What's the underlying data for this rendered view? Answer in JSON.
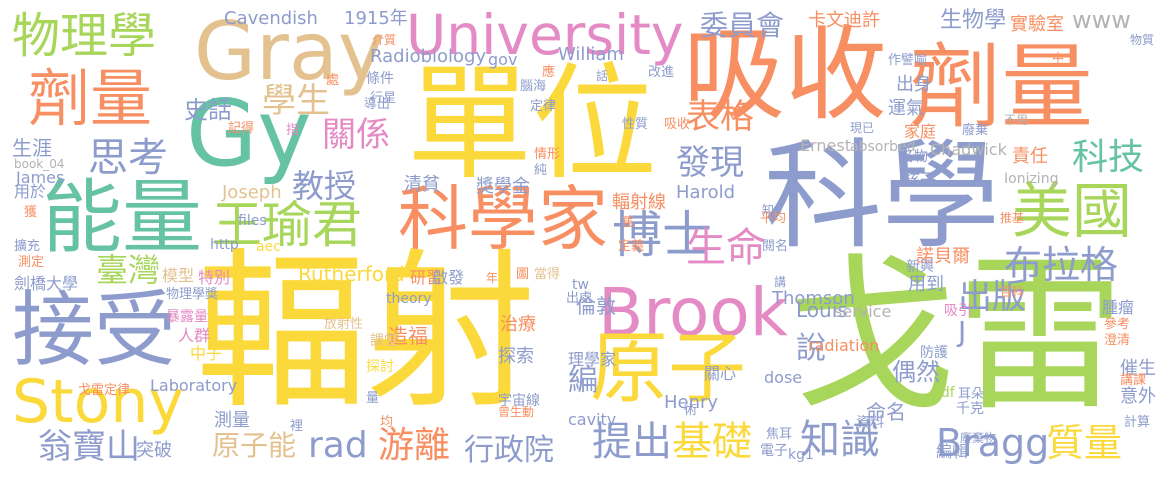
{
  "palette": {
    "yellow": "#fbd93b",
    "green": "#a7d65a",
    "orange": "#f88f63",
    "blue": "#8d9ccc",
    "tan": "#e3c28f",
    "pink": "#e48ac4",
    "teal": "#66c2a5",
    "grey": "#b3b3b3"
  },
  "words": [
    {
      "text": "輻射",
      "color": "yellow"
    },
    {
      "text": "戈雷",
      "color": "green"
    },
    {
      "text": "單位",
      "color": "yellow"
    },
    {
      "text": "吸收",
      "color": "orange"
    },
    {
      "text": "科學",
      "color": "blue"
    },
    {
      "text": "劑量",
      "color": "orange"
    },
    {
      "text": "Gray",
      "color": "tan"
    },
    {
      "text": "University",
      "color": "pink"
    },
    {
      "text": "物理學",
      "color": "green"
    },
    {
      "text": "劑量",
      "color": "orange"
    },
    {
      "text": "Gy",
      "color": "teal"
    },
    {
      "text": "能量",
      "color": "teal"
    },
    {
      "text": "接受",
      "color": "blue"
    },
    {
      "text": "Stony",
      "color": "yellow"
    },
    {
      "text": "科學家",
      "color": "orange"
    },
    {
      "text": "王瑜君",
      "color": "green"
    },
    {
      "text": "Brook",
      "color": "pink"
    },
    {
      "text": "原子",
      "color": "yellow"
    },
    {
      "text": "美國",
      "color": "green"
    },
    {
      "text": "博士",
      "color": "blue"
    },
    {
      "text": "思考",
      "color": "blue"
    },
    {
      "text": "學生",
      "color": "tan"
    },
    {
      "text": "關係",
      "color": "pink"
    },
    {
      "text": "教授",
      "color": "blue"
    },
    {
      "text": "生命",
      "color": "pink"
    },
    {
      "text": "基礎",
      "color": "yellow"
    },
    {
      "text": "知識",
      "color": "blue"
    },
    {
      "text": "提出",
      "color": "blue"
    },
    {
      "text": "游離",
      "color": "orange"
    },
    {
      "text": "rad",
      "color": "blue"
    },
    {
      "text": "翁寶山",
      "color": "blue"
    },
    {
      "text": "Bragg",
      "color": "blue"
    },
    {
      "text": "質量",
      "color": "yellow"
    },
    {
      "text": "布拉格",
      "color": "blue"
    },
    {
      "text": "科技",
      "color": "teal"
    },
    {
      "text": "發現",
      "color": "blue"
    },
    {
      "text": "表格",
      "color": "orange"
    },
    {
      "text": "出版",
      "color": "blue"
    },
    {
      "text": "行政院",
      "color": "blue"
    },
    {
      "text": "原子能",
      "color": "tan"
    },
    {
      "text": "臺灣",
      "color": "green"
    },
    {
      "text": "史話",
      "color": "blue"
    },
    {
      "text": "委員會",
      "color": "blue"
    },
    {
      "text": "說",
      "color": "blue"
    },
    {
      "text": "編",
      "color": "blue"
    },
    {
      "text": "Cavendish",
      "color": "blue"
    },
    {
      "text": "1915年",
      "color": "blue"
    },
    {
      "text": "卡文迪許",
      "color": "orange"
    },
    {
      "text": "生物學",
      "color": "blue"
    },
    {
      "text": "實驗室",
      "color": "orange"
    },
    {
      "text": "www",
      "color": "grey"
    },
    {
      "text": "Radiobiology",
      "color": "blue"
    },
    {
      "text": "William",
      "color": "blue"
    },
    {
      "text": "gov",
      "color": "blue"
    },
    {
      "text": "Louis",
      "color": "blue"
    },
    {
      "text": "Thomson",
      "color": "blue"
    },
    {
      "text": "Rutherford",
      "color": "yellow"
    },
    {
      "text": "Harold",
      "color": "blue"
    },
    {
      "text": "Henry",
      "color": "blue"
    },
    {
      "text": "Laboratory",
      "color": "blue"
    },
    {
      "text": "Joseph",
      "color": "tan"
    },
    {
      "text": "Ernest",
      "color": "grey"
    },
    {
      "text": "absorbed",
      "color": "grey"
    },
    {
      "text": "Chadwick",
      "color": "grey"
    },
    {
      "text": "radiation",
      "color": "orange"
    },
    {
      "text": "dose",
      "color": "blue"
    },
    {
      "text": "cavity",
      "color": "blue"
    },
    {
      "text": "theory",
      "color": "blue"
    },
    {
      "text": "service",
      "color": "grey"
    },
    {
      "text": "James",
      "color": "blue"
    },
    {
      "text": "files",
      "color": "blue"
    },
    {
      "text": "http",
      "color": "blue"
    },
    {
      "text": "aec",
      "color": "yellow"
    },
    {
      "text": "kg1",
      "color": "blue"
    },
    {
      "text": "pdf",
      "color": "green"
    },
    {
      "text": "tw",
      "color": "blue"
    },
    {
      "text": "book_04",
      "color": "grey"
    },
    {
      "text": "Ionizing",
      "color": "grey"
    },
    {
      "text": "獎學金",
      "color": "blue"
    },
    {
      "text": "輻射線",
      "color": "orange"
    },
    {
      "text": "諾貝爾",
      "color": "orange"
    },
    {
      "text": "用到",
      "color": "blue"
    },
    {
      "text": "倫敦",
      "color": "blue"
    },
    {
      "text": "偶然",
      "color": "blue"
    },
    {
      "text": "命名",
      "color": "blue"
    },
    {
      "text": "治療",
      "color": "orange"
    },
    {
      "text": "探索",
      "color": "blue"
    },
    {
      "text": "造福",
      "color": "orange"
    },
    {
      "text": "研習",
      "color": "orange"
    },
    {
      "text": "啟發",
      "color": "blue"
    },
    {
      "text": "清貧",
      "color": "blue"
    },
    {
      "text": "運氣",
      "color": "blue"
    },
    {
      "text": "出身",
      "color": "blue"
    },
    {
      "text": "家庭",
      "color": "orange"
    },
    {
      "text": "名物",
      "color": "blue"
    },
    {
      "text": "責任",
      "color": "orange"
    },
    {
      "text": "核子",
      "color": "blue"
    },
    {
      "text": "生涯",
      "color": "blue"
    },
    {
      "text": "用於",
      "color": "blue"
    },
    {
      "text": "劍橋大學",
      "color": "blue"
    },
    {
      "text": "人群",
      "color": "pink"
    },
    {
      "text": "中子",
      "color": "yellow"
    },
    {
      "text": "突破",
      "color": "blue"
    },
    {
      "text": "測量",
      "color": "blue"
    },
    {
      "text": "理學家",
      "color": "blue"
    },
    {
      "text": "編輯",
      "color": "blue"
    },
    {
      "text": "意外",
      "color": "blue"
    },
    {
      "text": "催生",
      "color": "blue"
    },
    {
      "text": "腫瘤",
      "color": "blue"
    },
    {
      "text": "防護",
      "color": "blue"
    },
    {
      "text": "關心",
      "color": "blue"
    },
    {
      "text": "電子",
      "color": "blue"
    },
    {
      "text": "千克",
      "color": "blue"
    },
    {
      "text": "資料",
      "color": "blue"
    },
    {
      "text": "模型",
      "color": "tan"
    },
    {
      "text": "特別",
      "color": "pink"
    },
    {
      "text": "物理學獎",
      "color": "blue"
    },
    {
      "text": "暴露量",
      "color": "pink"
    },
    {
      "text": "放射性",
      "color": "tan"
    },
    {
      "text": "課堂",
      "color": "tan"
    },
    {
      "text": "探討",
      "color": "yellow"
    },
    {
      "text": "宇宙線",
      "color": "blue"
    },
    {
      "text": "曾生動",
      "color": "orange"
    },
    {
      "text": "吸引",
      "color": "pink"
    },
    {
      "text": "新興",
      "color": "blue"
    },
    {
      "text": "參考",
      "color": "orange"
    },
    {
      "text": "澄清",
      "color": "orange"
    },
    {
      "text": "講課",
      "color": "orange"
    },
    {
      "text": "計算",
      "color": "blue"
    },
    {
      "text": "耳朵",
      "color": "blue"
    },
    {
      "text": "廢棄物",
      "color": "blue"
    },
    {
      "text": "焦耳",
      "color": "blue"
    },
    {
      "text": "作譬喻",
      "color": "blue"
    },
    {
      "text": "現已",
      "color": "blue"
    },
    {
      "text": "廢棄",
      "color": "blue"
    },
    {
      "text": "不用",
      "color": "grey"
    },
    {
      "text": "物質",
      "color": "blue"
    },
    {
      "text": "百科",
      "color": "orange"
    },
    {
      "text": "推基",
      "color": "orange"
    },
    {
      "text": "閱名",
      "color": "blue"
    },
    {
      "text": "平均",
      "color": "orange"
    },
    {
      "text": "定義",
      "color": "orange"
    },
    {
      "text": "知",
      "color": "blue"
    },
    {
      "text": "講",
      "color": "blue"
    },
    {
      "text": "當得",
      "color": "tan"
    },
    {
      "text": "圖",
      "color": "orange"
    },
    {
      "text": "年",
      "color": "orange"
    },
    {
      "text": "出處",
      "color": "blue"
    },
    {
      "text": "性質",
      "color": "blue"
    },
    {
      "text": "吸收",
      "color": "orange"
    },
    {
      "text": "情形",
      "color": "orange"
    },
    {
      "text": "純",
      "color": "blue"
    },
    {
      "text": "腦海",
      "color": "blue"
    },
    {
      "text": "定律",
      "color": "blue"
    },
    {
      "text": "改進",
      "color": "blue"
    },
    {
      "text": "話",
      "color": "blue"
    },
    {
      "text": "應",
      "color": "orange"
    },
    {
      "text": "記得",
      "color": "orange"
    },
    {
      "text": "指",
      "color": "pink"
    },
    {
      "text": "條件",
      "color": "blue"
    },
    {
      "text": "導出",
      "color": "blue"
    },
    {
      "text": "行星",
      "color": "blue"
    },
    {
      "text": "處",
      "color": "orange"
    },
    {
      "text": "介質",
      "color": "orange"
    },
    {
      "text": "中",
      "color": "orange"
    },
    {
      "text": "舊",
      "color": "orange"
    },
    {
      "text": "戈雷定律",
      "color": "orange"
    },
    {
      "text": "獲",
      "color": "orange"
    },
    {
      "text": "擴充",
      "color": "blue"
    },
    {
      "text": "測定",
      "color": "orange"
    },
    {
      "text": "量",
      "color": "blue"
    },
    {
      "text": "均",
      "color": "orange"
    },
    {
      "text": "裡",
      "color": "blue"
    },
    {
      "text": "術",
      "color": "blue"
    },
    {
      "text": "J",
      "color": "blue"
    }
  ]
}
